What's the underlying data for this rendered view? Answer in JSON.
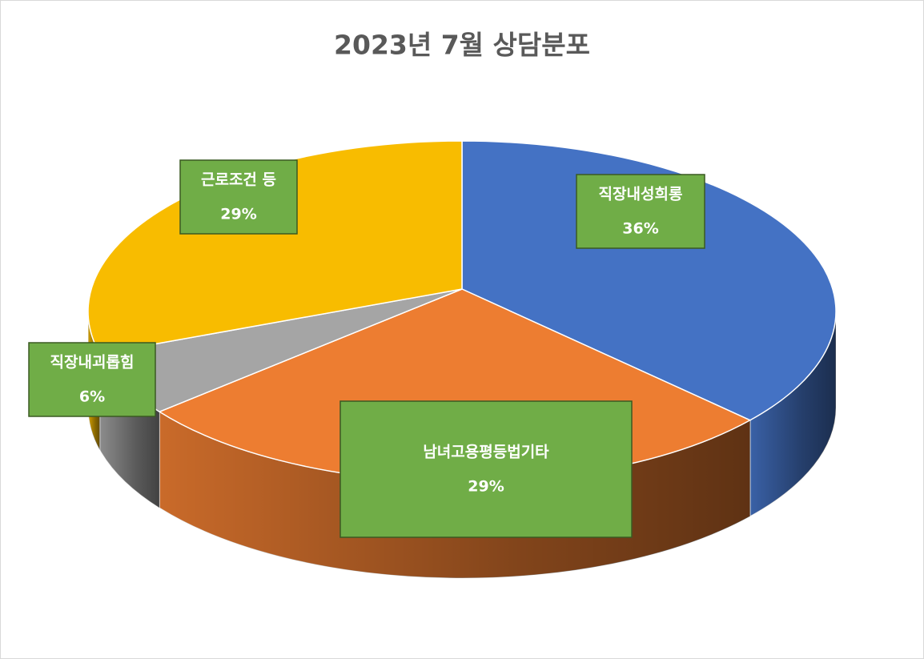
{
  "chart_data": {
    "type": "pie",
    "title": "2023년 7월 상담분포",
    "categories": [
      "직장내성희롱",
      "남녀고용평등법기타",
      "직장내괴롭힘",
      "근로조건 등"
    ],
    "values": [
      36,
      29,
      6,
      29
    ],
    "value_labels": [
      "36%",
      "29%",
      "6%",
      "29%"
    ],
    "colors": [
      "#4472c4",
      "#ed7d31",
      "#a5a5a5",
      "#f8bc00"
    ]
  }
}
